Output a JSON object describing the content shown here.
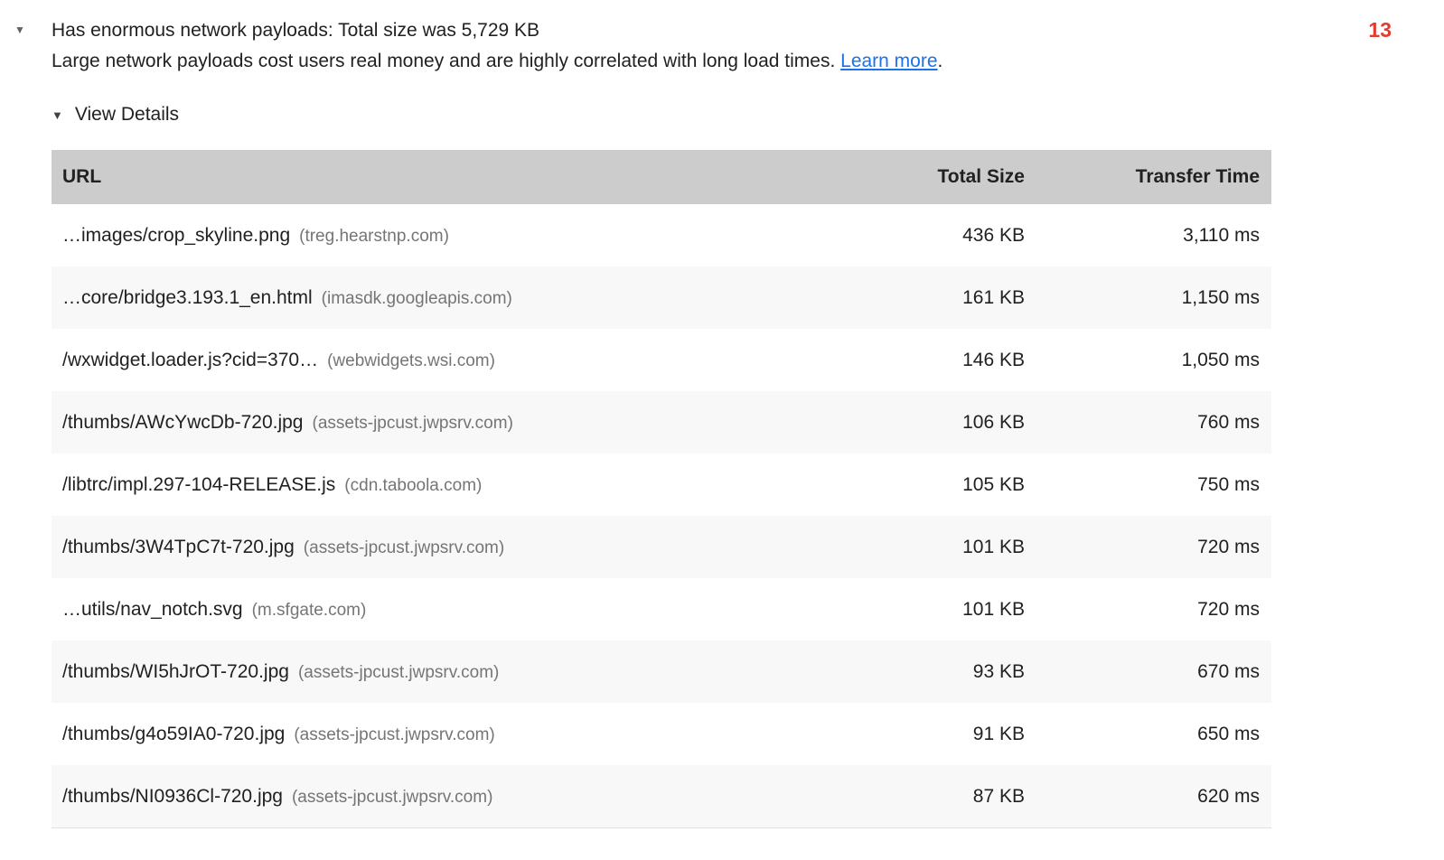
{
  "audit": {
    "expand_icon": "▼",
    "title": "Has enormous network payloads: Total size was 5,729 KB",
    "description": "Large network payloads cost users real money and are highly correlated with long load times.",
    "learn_more": "Learn more",
    "period": ".",
    "score": "13",
    "view_details": {
      "icon": "▼",
      "label": "View Details"
    }
  },
  "table": {
    "headers": {
      "url": "URL",
      "total_size": "Total Size",
      "transfer_time": "Transfer Time"
    },
    "rows": [
      {
        "path": "…images/crop_skyline.png",
        "domain": "(treg.hearstnp.com)",
        "size": "436 KB",
        "time": "3,110 ms"
      },
      {
        "path": "…core/bridge3.193.1_en.html",
        "domain": "(imasdk.googleapis.com)",
        "size": "161 KB",
        "time": "1,150 ms"
      },
      {
        "path": "/wxwidget.loader.js?cid=370…",
        "domain": "(webwidgets.wsi.com)",
        "size": "146 KB",
        "time": "1,050 ms"
      },
      {
        "path": "/thumbs/AWcYwcDb-720.jpg",
        "domain": "(assets-jpcust.jwpsrv.com)",
        "size": "106 KB",
        "time": "760 ms"
      },
      {
        "path": "/libtrc/impl.297-104-RELEASE.js",
        "domain": "(cdn.taboola.com)",
        "size": "105 KB",
        "time": "750 ms"
      },
      {
        "path": "/thumbs/3W4TpC7t-720.jpg",
        "domain": "(assets-jpcust.jwpsrv.com)",
        "size": "101 KB",
        "time": "720 ms"
      },
      {
        "path": "…utils/nav_notch.svg",
        "domain": "(m.sfgate.com)",
        "size": "101 KB",
        "time": "720 ms"
      },
      {
        "path": "/thumbs/WI5hJrOT-720.jpg",
        "domain": "(assets-jpcust.jwpsrv.com)",
        "size": "93 KB",
        "time": "670 ms"
      },
      {
        "path": "/thumbs/g4o59IA0-720.jpg",
        "domain": "(assets-jpcust.jwpsrv.com)",
        "size": "91 KB",
        "time": "650 ms"
      },
      {
        "path": "/thumbs/NI0936Cl-720.jpg",
        "domain": "(assets-jpcust.jwpsrv.com)",
        "size": "87 KB",
        "time": "620 ms"
      }
    ]
  },
  "colors": {
    "fail_score": "#e13c2f",
    "link": "#1a73e8",
    "header_bg": "#cccccc",
    "row_alt_bg": "#f8f8f8",
    "domain_text": "#757575"
  }
}
